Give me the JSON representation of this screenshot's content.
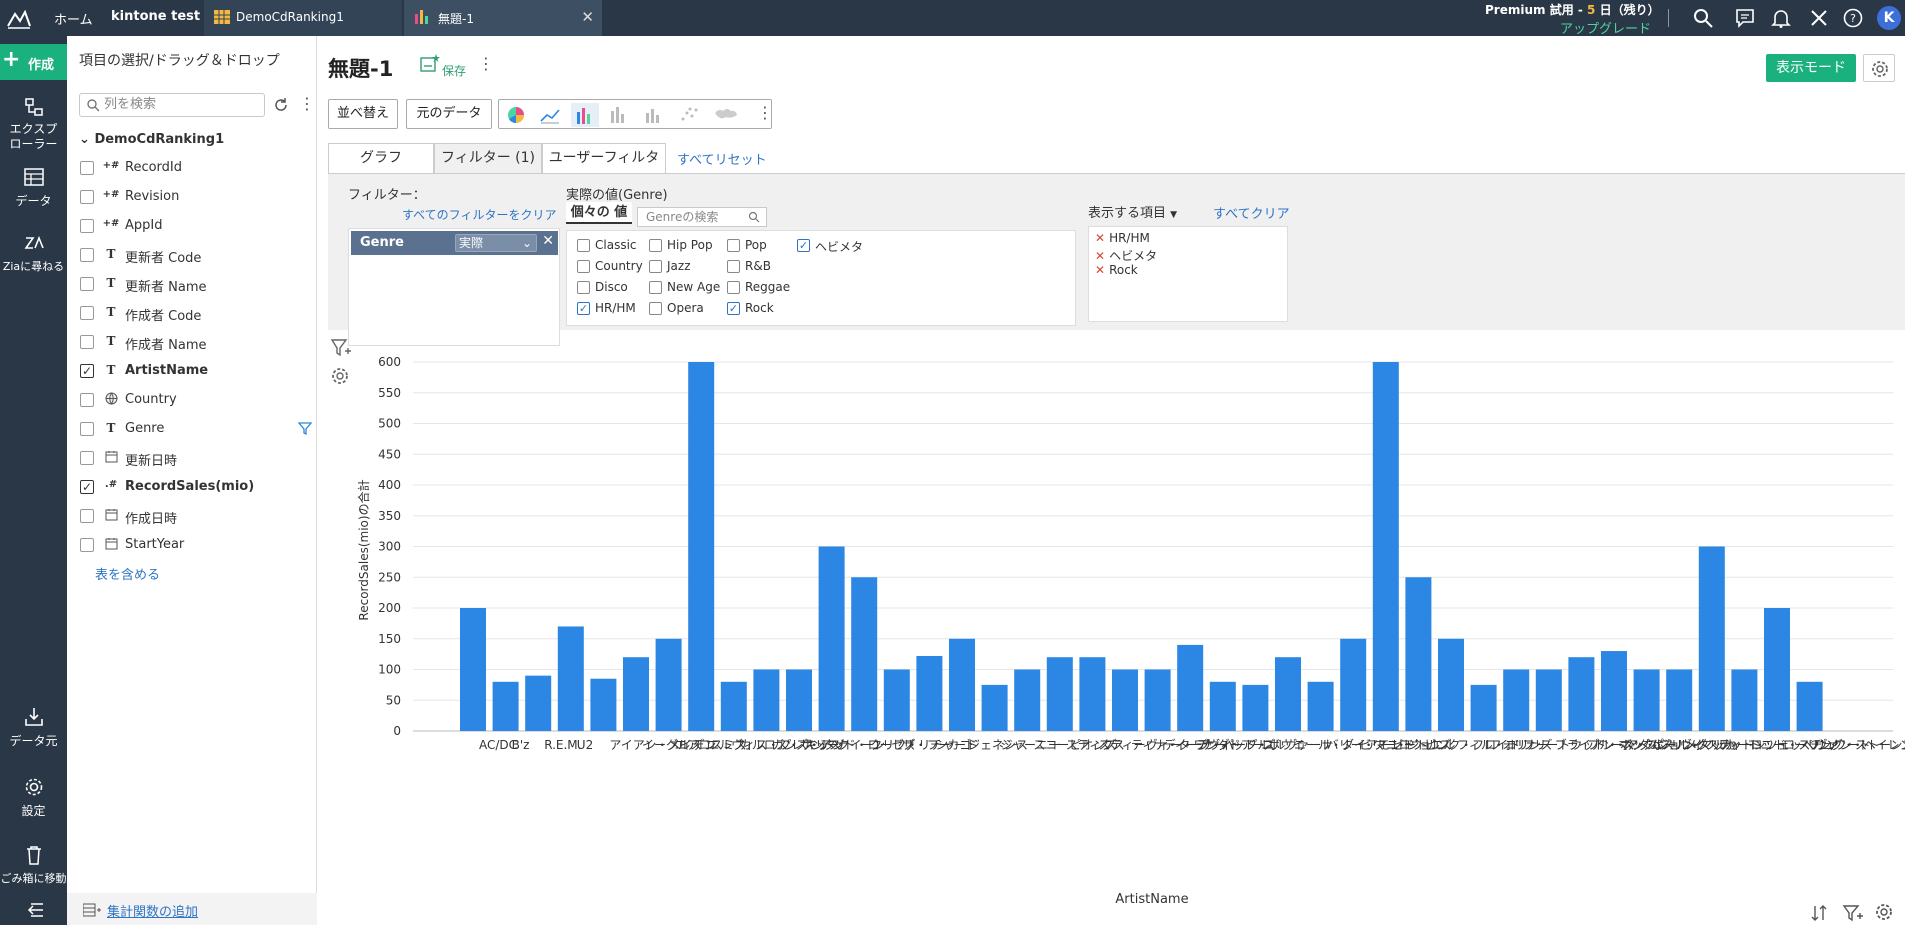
{
  "topbar": {
    "home": "ホーム",
    "workspace": "kintone test",
    "tabs": [
      {
        "label": "DemoCdRanking1"
      },
      {
        "label": "無題-1"
      }
    ],
    "premium_prefix": "Premium 試用 - ",
    "premium_days": "5",
    "premium_suffix": " 日（残り）",
    "upgrade": "アップグレード",
    "avatar": "K"
  },
  "leftnav": {
    "create": "作成",
    "items": [
      {
        "label": "エクスプローラー"
      },
      {
        "label": "データ"
      },
      {
        "label": "Ziaに尋ねる"
      },
      {
        "label": "データ元"
      },
      {
        "label": "設定"
      },
      {
        "label": "ごみ箱に移動"
      }
    ]
  },
  "fieldpanel": {
    "title": "項目の選択/ドラッグ＆ドロップ",
    "search_placeholder": "列を検索",
    "datasource": "DemoCdRanking1",
    "fields": [
      {
        "type": "+#",
        "label": "RecordId",
        "checked": false,
        "bold": false
      },
      {
        "type": "+#",
        "label": "Revision",
        "checked": false,
        "bold": false
      },
      {
        "type": "+#",
        "label": "AppId",
        "checked": false,
        "bold": false
      },
      {
        "type": "T",
        "label": "更新者 Code",
        "checked": false,
        "bold": false
      },
      {
        "type": "T",
        "label": "更新者 Name",
        "checked": false,
        "bold": false
      },
      {
        "type": "T",
        "label": "作成者 Code",
        "checked": false,
        "bold": false
      },
      {
        "type": "T",
        "label": "作成者 Name",
        "checked": false,
        "bold": false
      },
      {
        "type": "T",
        "label": "ArtistName",
        "checked": true,
        "bold": true
      },
      {
        "type": "globe",
        "label": "Country",
        "checked": false,
        "bold": false
      },
      {
        "type": "T",
        "label": "Genre",
        "checked": false,
        "bold": false,
        "filtered": true
      },
      {
        "type": "cal",
        "label": "更新日時",
        "checked": false,
        "bold": false
      },
      {
        "type": ".#",
        "label": "RecordSales(mio)",
        "checked": true,
        "bold": true
      },
      {
        "type": "cal",
        "label": "作成日時",
        "checked": false,
        "bold": false
      },
      {
        "type": "cal",
        "label": "StartYear",
        "checked": false,
        "bold": false
      }
    ],
    "include_tables": "表を含める",
    "add_aggregate": "集計関数の追加"
  },
  "report": {
    "title": "無題-1",
    "save": "保存",
    "view_mode": "表示モード",
    "sort": "並べ替え",
    "raw_data": "元のデータ"
  },
  "subtabs": {
    "graph": "グラフ",
    "filter": "フィルター (1)",
    "user_filter": "ユーザーフィルター",
    "reset_all": "すべてリセット"
  },
  "filter": {
    "label": "フィルター：",
    "clear_all_filters": "すべてのフィルターをクリア",
    "chip_name": "Genre",
    "chip_mode": "実際",
    "actual_values_title": "実際の値(Genre)",
    "individual_tab": "個々の 値",
    "genre_search_placeholder": "Genreの検索",
    "values": [
      {
        "label": "Classic",
        "checked": false
      },
      {
        "label": "Country",
        "checked": false
      },
      {
        "label": "Disco",
        "checked": false
      },
      {
        "label": "HR/HM",
        "checked": true
      },
      {
        "label": "Hip Pop",
        "checked": false
      },
      {
        "label": "Jazz",
        "checked": false
      },
      {
        "label": "New Age",
        "checked": false
      },
      {
        "label": "Opera",
        "checked": false
      },
      {
        "label": "Pop",
        "checked": false
      },
      {
        "label": "R&B",
        "checked": false
      },
      {
        "label": "Reggae",
        "checked": false
      },
      {
        "label": "Rock",
        "checked": true
      },
      {
        "label": "ヘビメタ",
        "checked": true
      }
    ],
    "show_items_title": "表示する項目",
    "clear_all": "すべてクリア",
    "shown_items": [
      "HR/HM",
      "ヘビメタ",
      "Rock"
    ]
  },
  "chart_data": {
    "type": "bar",
    "xlabel": "ArtistName",
    "ylabel": "RecordSales(mio)の合計",
    "ylim": [
      0,
      600
    ],
    "yticks": [
      0,
      50,
      100,
      150,
      200,
      250,
      300,
      350,
      400,
      450,
      500,
      550,
      600
    ],
    "grid": true,
    "color": "#2b87e3",
    "categories": [
      "AC/DC",
      "B'z",
      "R.E.M.",
      "U2",
      "アイアン・メイデン",
      "イーグルス",
      "エアロスミス",
      "エルヴィス・プレスリー",
      "カルロス・サンタナ",
      "ガンズ・アンド・ローゼズ",
      "キッス",
      "クイーン",
      "クリフ・リチャード",
      "ザ・フー",
      "シカゴ",
      "ジェネシス",
      "ジャーニー",
      "スコーピオンズ",
      "スティクス",
      "スティーヴィー・ワンダー",
      "ティナ・ターナー",
      "ディープ・パープル",
      "デヴィッド・ボウイ",
      "ドアーズ",
      "ニルヴァーナ",
      "ニール・ダイアモンド",
      "バリー・マニロウ",
      "ビリー・ジョエル",
      "ビートルズ",
      "ピンク・フロイド",
      "フィル・コリンズ",
      "フォリナー",
      "フリートウッド・マック",
      "ブライアン・アダムス",
      "ブルース・スプリングスティーン",
      "ボン・ジョヴィ",
      "ポール・マッカートニー",
      "メタリカ",
      "レッド・ツェッペリン",
      "ロッド・スチュワート",
      "ローリング・ストーンズ",
      "ヴァン・ヘイレン"
    ],
    "values": [
      200,
      80,
      90,
      170,
      85,
      120,
      150,
      600,
      80,
      100,
      100,
      300,
      250,
      100,
      122,
      150,
      75,
      100,
      120,
      120,
      100,
      100,
      140,
      80,
      75,
      120,
      80,
      150,
      600,
      250,
      150,
      75,
      100,
      100,
      120,
      130,
      100,
      100,
      300,
      100,
      200,
      80
    ]
  }
}
